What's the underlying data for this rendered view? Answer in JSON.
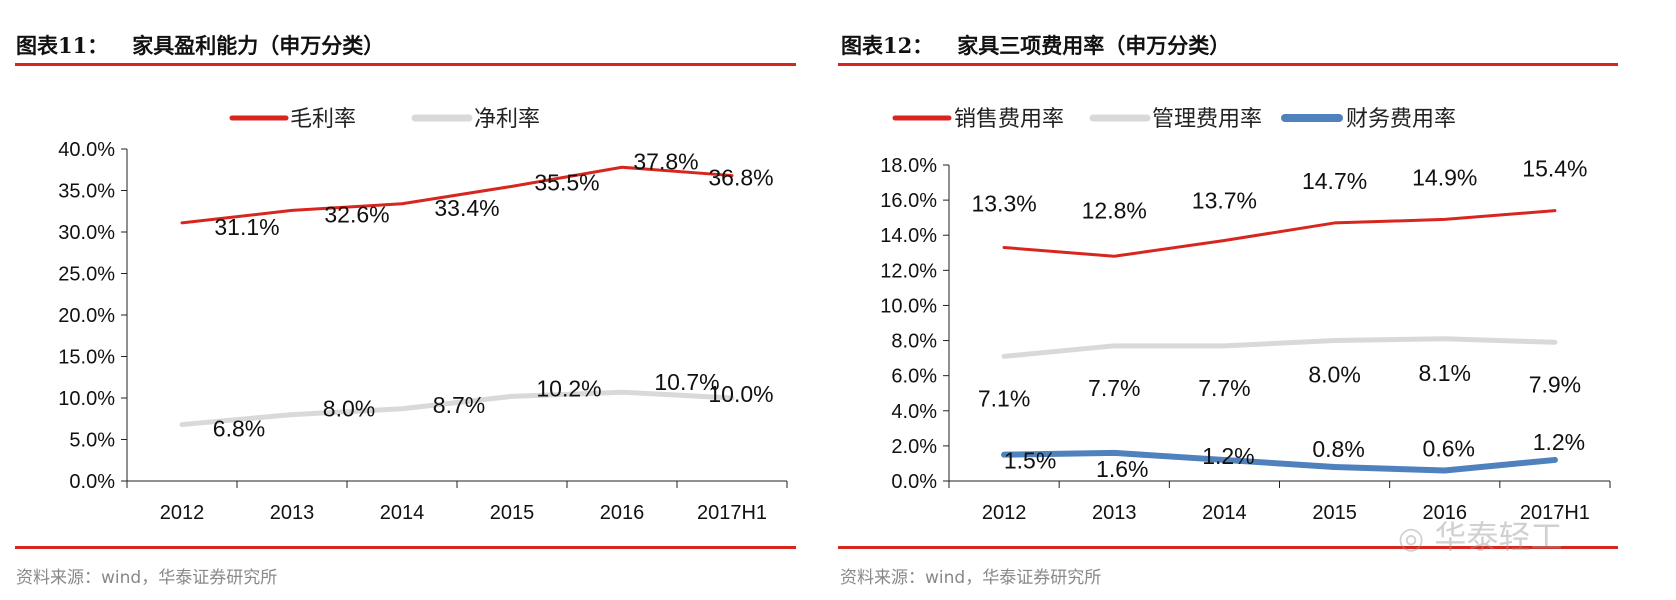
{
  "charts_meta": [
    {
      "title_num": "图表11：",
      "title_text": "家具盈利能力（申万分类）",
      "source": "资料来源：wind，华泰证券研究所"
    },
    {
      "title_num": "图表12：",
      "title_text": "家具三项费用率（申万分类）",
      "source": "资料来源：wind，华泰证券研究所"
    }
  ],
  "watermark": "华泰轻工",
  "chart_data": [
    {
      "type": "line",
      "categories": [
        "2012",
        "2013",
        "2014",
        "2015",
        "2016",
        "2017H1"
      ],
      "ylim": [
        0,
        40
      ],
      "yticks": [
        "0.0%",
        "5.0%",
        "10.0%",
        "15.0%",
        "20.0%",
        "25.0%",
        "30.0%",
        "35.0%",
        "40.0%"
      ],
      "legend_position": "top",
      "grid": false,
      "series": [
        {
          "name": "毛利率",
          "color": "#d7261e",
          "values": [
            31.1,
            32.6,
            33.4,
            35.5,
            37.8,
            36.8
          ],
          "labels": [
            "31.1%",
            "32.6%",
            "33.4%",
            "35.5%",
            "37.8%",
            "36.8%"
          ]
        },
        {
          "name": "净利率",
          "color": "#d9d9d9",
          "values": [
            6.8,
            8.0,
            8.7,
            10.2,
            10.7,
            10.0
          ],
          "labels": [
            "6.8%",
            "8.0%",
            "8.7%",
            "10.2%",
            "10.7%",
            "10.0%"
          ]
        }
      ]
    },
    {
      "type": "line",
      "categories": [
        "2012",
        "2013",
        "2014",
        "2015",
        "2016",
        "2017H1"
      ],
      "ylim": [
        0,
        18
      ],
      "yticks": [
        "0.0%",
        "2.0%",
        "4.0%",
        "6.0%",
        "8.0%",
        "10.0%",
        "12.0%",
        "14.0%",
        "16.0%",
        "18.0%"
      ],
      "legend_position": "top",
      "grid": false,
      "series": [
        {
          "name": "销售费用率",
          "color": "#d7261e",
          "values": [
            13.3,
            12.8,
            13.7,
            14.7,
            14.9,
            15.4
          ],
          "labels": [
            "13.3%",
            "12.8%",
            "13.7%",
            "14.7%",
            "14.9%",
            "15.4%"
          ]
        },
        {
          "name": "管理费用率",
          "color": "#d9d9d9",
          "values": [
            7.1,
            7.7,
            7.7,
            8.0,
            8.1,
            7.9
          ],
          "labels": [
            "7.1%",
            "7.7%",
            "7.7%",
            "8.0%",
            "8.1%",
            "7.9%"
          ]
        },
        {
          "name": "财务费用率",
          "color": "#4f81bd",
          "values": [
            1.5,
            1.6,
            1.2,
            0.8,
            0.6,
            1.2
          ],
          "labels": [
            "1.5%",
            "1.6%",
            "1.2%",
            "0.8%",
            "0.6%",
            "1.2%"
          ]
        }
      ]
    }
  ]
}
